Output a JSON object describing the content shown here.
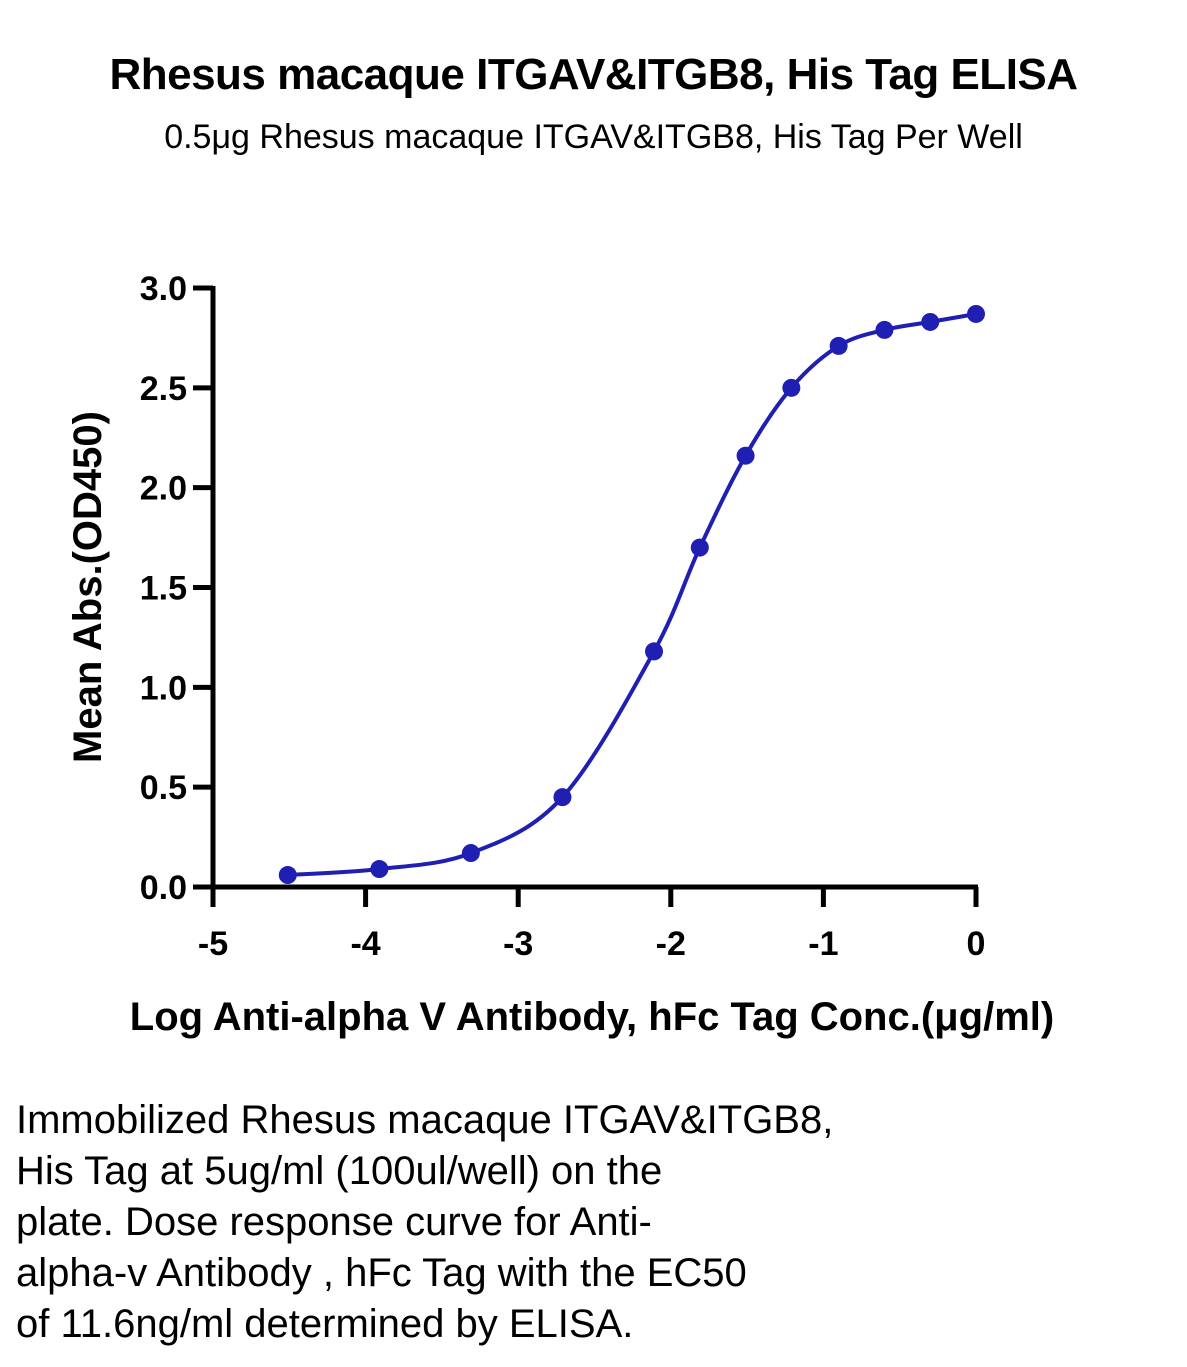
{
  "chart_data": {
    "type": "scatter",
    "title": "Rhesus macaque ITGAV&ITGB8, His Tag ELISA",
    "subtitle": "0.5μg Rhesus macaque ITGAV&ITGB8, His Tag Per Well",
    "xlabel": "Log Anti-alpha V Antibody, hFc Tag Conc.(μg/ml)",
    "ylabel": "Mean Abs.(OD450)",
    "xlim": [
      -5,
      0
    ],
    "ylim": [
      0,
      3.0
    ],
    "x_ticks": [
      "-5",
      "-4",
      "-3",
      "-2",
      "-1",
      "0"
    ],
    "y_ticks": [
      "0.0",
      "0.5",
      "1.0",
      "1.5",
      "2.0",
      "2.5",
      "3.0"
    ],
    "grid": false,
    "series": [
      {
        "points": [
          {
            "x": -4.51,
            "y": 0.06
          },
          {
            "x": -3.91,
            "y": 0.09
          },
          {
            "x": -3.31,
            "y": 0.17
          },
          {
            "x": -2.71,
            "y": 0.45
          },
          {
            "x": -2.11,
            "y": 1.18
          },
          {
            "x": -1.81,
            "y": 1.7
          },
          {
            "x": -1.51,
            "y": 2.16
          },
          {
            "x": -1.21,
            "y": 2.5
          },
          {
            "x": -0.9,
            "y": 2.71
          },
          {
            "x": -0.6,
            "y": 2.79
          },
          {
            "x": -0.3,
            "y": 2.83
          },
          {
            "x": 0.0,
            "y": 2.87
          }
        ],
        "color": "#1f1fb4"
      }
    ]
  },
  "caption": "Immobilized Rhesus macaque ITGAV&ITGB8,\nHis Tag at 5ug/ml (100ul/well) on the\nplate. Dose response curve for Anti-\nalpha-v Antibody , hFc Tag with the EC50\nof 11.6ng/ml determined by ELISA."
}
